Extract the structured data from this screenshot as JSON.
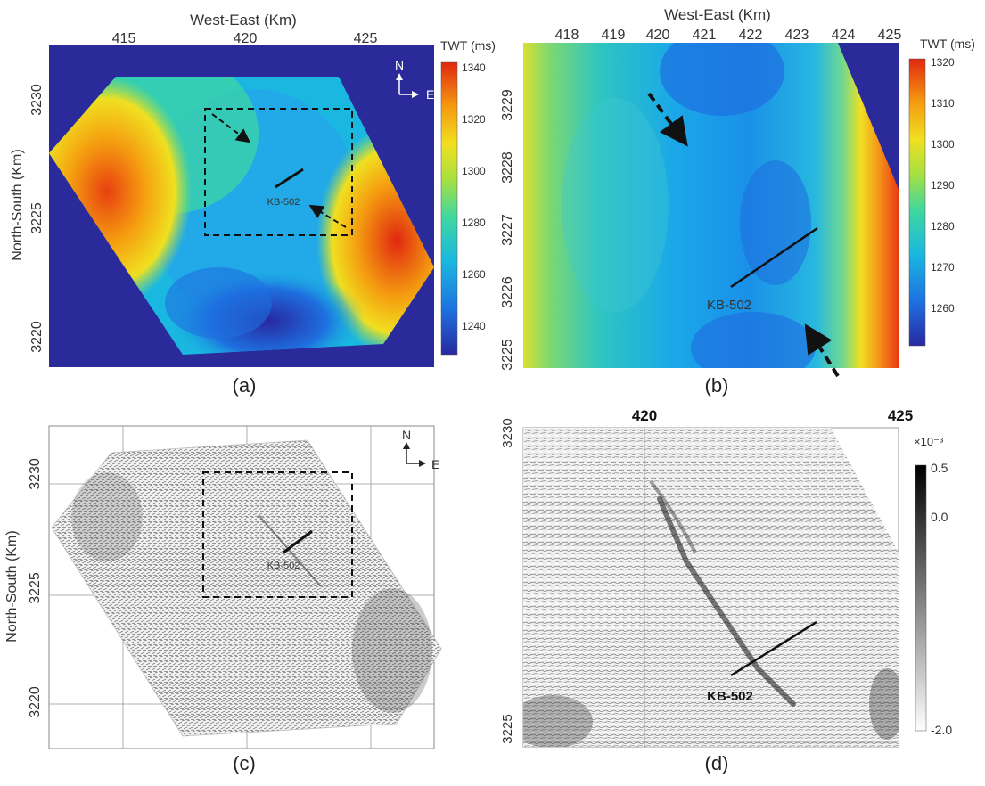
{
  "panels": {
    "a": {
      "caption": "(a)",
      "x_axis_title": "West-East (Km)",
      "y_axis_title": "North-South (Km)",
      "x_ticks": [
        "415",
        "420",
        "425"
      ],
      "y_ticks": [
        "3230",
        "3225",
        "3220"
      ],
      "colorbar_title": "TWT (ms)",
      "colorbar_ticks": [
        "1340",
        "1320",
        "1300",
        "1280",
        "1260",
        "1240"
      ],
      "north_label": "N",
      "east_label": "E",
      "well_label": "KB-502"
    },
    "b": {
      "caption": "(b)",
      "x_axis_title": "West-East (Km)",
      "x_ticks": [
        "418",
        "419",
        "420",
        "421",
        "422",
        "423",
        "424",
        "425"
      ],
      "y_ticks": [
        "3229",
        "3228",
        "3227",
        "3226",
        "3225"
      ],
      "colorbar_title": "TWT (ms)",
      "colorbar_ticks": [
        "1320",
        "1310",
        "1300",
        "1290",
        "1280",
        "1270",
        "1260"
      ],
      "well_label": "KB-502"
    },
    "c": {
      "caption": "(c)",
      "y_axis_title": "North-South (Km)",
      "y_ticks": [
        "3230",
        "3225",
        "3220"
      ],
      "north_label": "N",
      "east_label": "E",
      "well_label": "KB-502"
    },
    "d": {
      "caption": "(d)",
      "x_ticks": [
        "420",
        "425"
      ],
      "y_ticks": [
        "3230",
        "3225"
      ],
      "colorbar_exponent": "×10⁻³",
      "colorbar_ticks": [
        "0.5",
        "0.0",
        "-2.0"
      ],
      "well_label": "KB-502"
    }
  },
  "colors": {
    "background_blue": "#2a2a9a",
    "colormap": [
      "#2828a0",
      "#1e6fe0",
      "#1ab8e0",
      "#3fd7a0",
      "#a8e040",
      "#f0e020",
      "#f59a10",
      "#e02810"
    ]
  }
}
